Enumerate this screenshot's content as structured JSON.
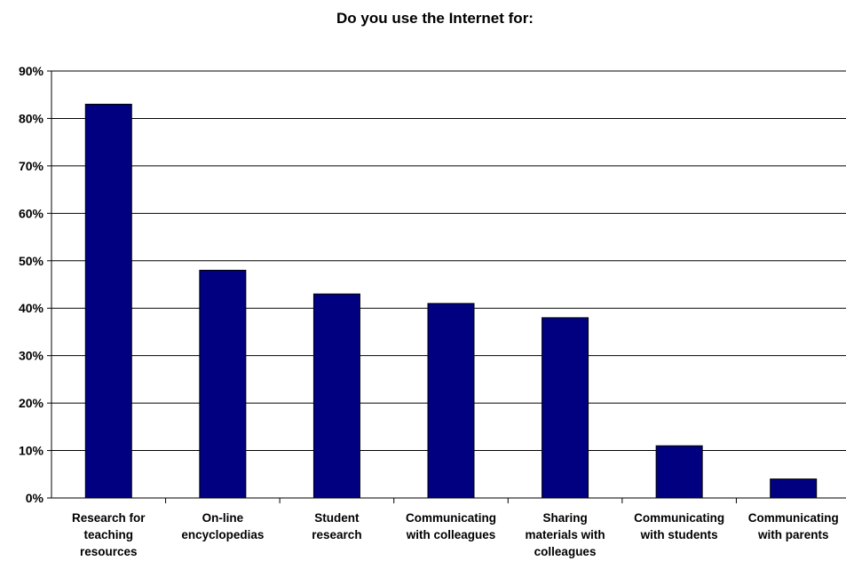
{
  "chart_data": {
    "type": "bar",
    "title": "Do you use the Internet for:",
    "xlabel": "",
    "ylabel": "",
    "categories": [
      "Research for teaching resources",
      "On-line encyclopedias",
      "Student research",
      "Communicating with colleagues",
      "Sharing materials with colleagues",
      "Communicating with students",
      "Communicating with parents"
    ],
    "category_lines": [
      [
        "Research for",
        "teaching",
        "resources"
      ],
      [
        "On-line",
        "encyclopedias"
      ],
      [
        "Student",
        "research"
      ],
      [
        "Communicating",
        "with colleagues"
      ],
      [
        "Sharing",
        "materials with",
        "colleagues"
      ],
      [
        "Communicating",
        "with students"
      ],
      [
        "Communicating",
        "with parents"
      ]
    ],
    "values": [
      83,
      48,
      43,
      41,
      38,
      11,
      4
    ],
    "ylim": [
      0,
      90
    ],
    "yticks": [
      0,
      10,
      20,
      30,
      40,
      50,
      60,
      70,
      80,
      90
    ],
    "ytick_labels": [
      "0%",
      "10%",
      "20%",
      "30%",
      "40%",
      "50%",
      "60%",
      "70%",
      "80%",
      "90%"
    ],
    "grid": true,
    "legend": false,
    "colors": {
      "bar": "#000080",
      "bar_edge": "#000000",
      "grid": "#000000"
    }
  }
}
